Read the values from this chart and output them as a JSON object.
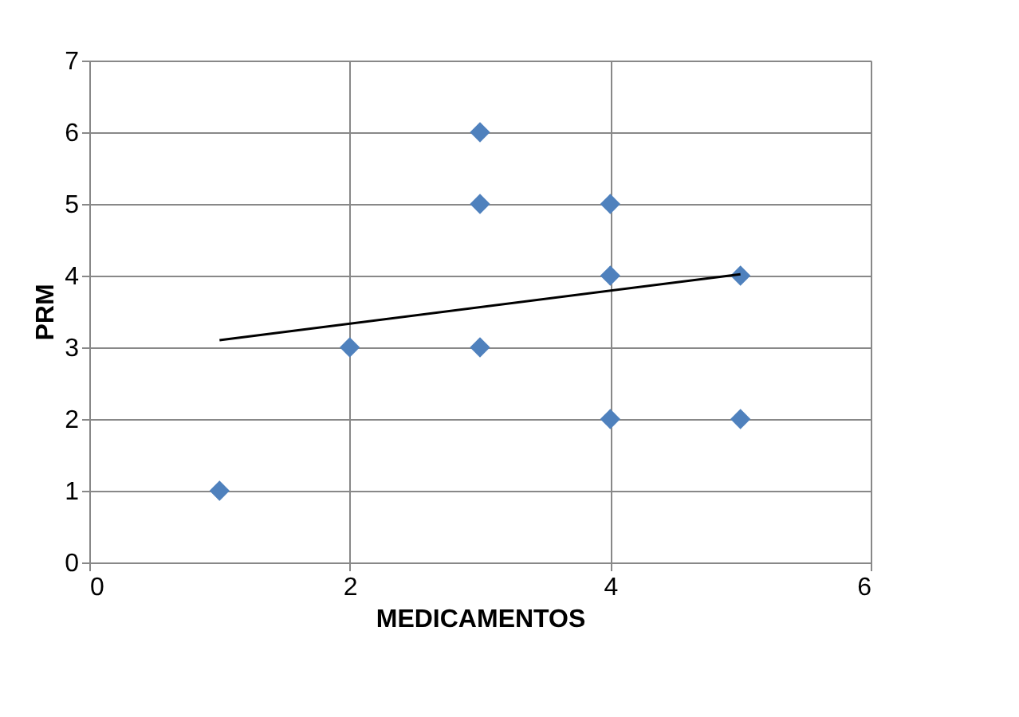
{
  "chart_data": {
    "type": "scatter",
    "xlabel": "MEDICAMENTOS",
    "ylabel": "PRM",
    "series": [
      {
        "color": "#4f81bd",
        "marker": "diamond",
        "x": [
          1,
          2,
          3,
          3,
          3,
          4,
          4,
          4,
          5,
          5
        ],
        "values": [
          1,
          3,
          6,
          5,
          3,
          5,
          4,
          2,
          4,
          2
        ]
      },
      {
        "type": "line",
        "color": "#000000",
        "marker": "none",
        "x": [
          1,
          5
        ],
        "values": [
          3.1,
          4.02
        ]
      }
    ],
    "xlim": [
      0,
      6
    ],
    "xticks": [
      0,
      2,
      4,
      6
    ],
    "ylim": [
      0,
      7
    ],
    "yticks": [
      0,
      1,
      2,
      3,
      4,
      5,
      6,
      7
    ],
    "grid": true
  }
}
